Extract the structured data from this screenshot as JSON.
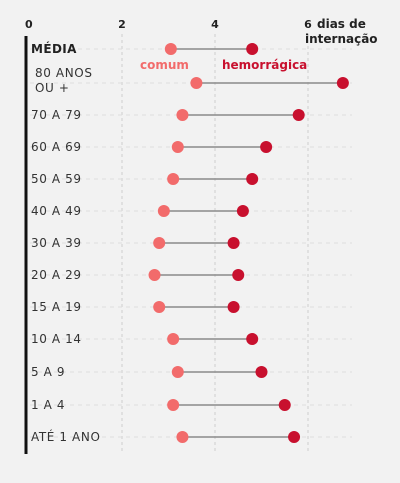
{
  "chart_data": {
    "type": "dumbbell",
    "x_unit_label": [
      "dias de",
      "internação"
    ],
    "x_ticks": [
      0,
      2,
      4,
      6
    ],
    "xlim": [
      0,
      7
    ],
    "grid": "vertical dashed",
    "series": [
      {
        "name": "comum",
        "color": "#f26b6b"
      },
      {
        "name": "hemorrágica",
        "color": "#c8102e"
      }
    ],
    "categories": [
      {
        "label": [
          "MÉDIA"
        ],
        "bold": true,
        "comum": 3.05,
        "hemorragica": 4.8
      },
      {
        "label": [
          "80 ANOS",
          "OU +"
        ],
        "bold": false,
        "comum": 3.6,
        "hemorragica": 6.75
      },
      {
        "label": [
          "70 A 79"
        ],
        "bold": false,
        "comum": 3.3,
        "hemorragica": 5.8
      },
      {
        "label": [
          "60 A 69"
        ],
        "bold": false,
        "comum": 3.2,
        "hemorragica": 5.1
      },
      {
        "label": [
          "50 A 59"
        ],
        "bold": false,
        "comum": 3.1,
        "hemorragica": 4.8
      },
      {
        "label": [
          "40 A 49"
        ],
        "bold": false,
        "comum": 2.9,
        "hemorragica": 4.6
      },
      {
        "label": [
          "30 A 39"
        ],
        "bold": false,
        "comum": 2.8,
        "hemorragica": 4.4
      },
      {
        "label": [
          "20 A 29"
        ],
        "bold": false,
        "comum": 2.7,
        "hemorragica": 4.5
      },
      {
        "label": [
          "15 A 19"
        ],
        "bold": false,
        "comum": 2.8,
        "hemorragica": 4.4
      },
      {
        "label": [
          "10 A 14"
        ],
        "bold": false,
        "comum": 3.1,
        "hemorragica": 4.8
      },
      {
        "label": [
          "5 A 9"
        ],
        "bold": false,
        "comum": 3.2,
        "hemorragica": 5.0
      },
      {
        "label": [
          "1 A 4"
        ],
        "bold": false,
        "comum": 3.1,
        "hemorragica": 5.5
      },
      {
        "label": [
          "ATÉ 1 ANO"
        ],
        "bold": false,
        "comum": 3.3,
        "hemorragica": 5.7
      }
    ]
  }
}
